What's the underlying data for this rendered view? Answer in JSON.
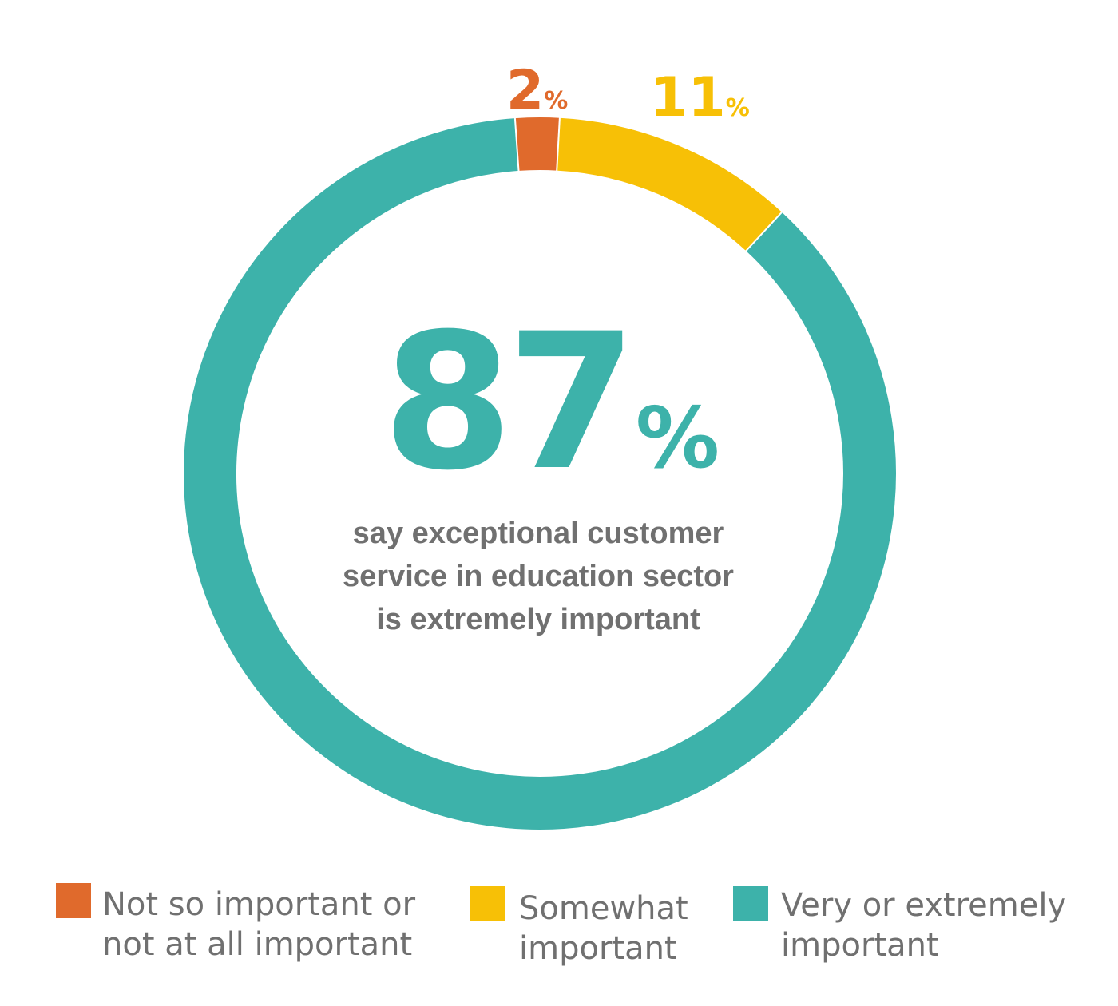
{
  "chart_data": {
    "type": "pie",
    "categories": [
      "Not so important or not at all important",
      "Somewhat important",
      "Very or extremely important"
    ],
    "values": [
      2,
      11,
      87
    ],
    "unit": "%",
    "colors": [
      "#e06a2c",
      "#f7c006",
      "#3db2aa"
    ],
    "slice_labels": [
      {
        "number": "2",
        "unit": "%"
      },
      {
        "number": "11",
        "unit": "%"
      },
      null
    ],
    "center": {
      "value": "87",
      "unit": "%",
      "caption_lines": [
        "say exceptional customer",
        "service in education sector",
        "is extremely important"
      ]
    },
    "legend": {
      "placement": "bottom",
      "items": [
        {
          "lines": [
            "Not so important or",
            "not at all important"
          ],
          "color": "#e06a2c"
        },
        {
          "lines": [
            "Somewhat",
            "important"
          ],
          "color": "#f7c006"
        },
        {
          "lines": [
            "Very or extremely",
            "important"
          ],
          "color": "#3db2aa"
        }
      ]
    },
    "text_color": "#707070"
  }
}
